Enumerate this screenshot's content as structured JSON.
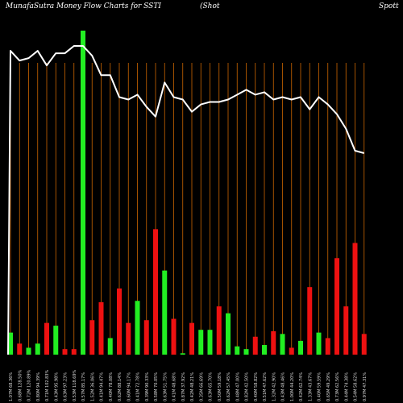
{
  "header": {
    "brand": "MunafaSutra  Money Flow  Charts for SSTI",
    "company": "(Shot",
    "company_end": "Spott"
  },
  "chart_data": {
    "type": "bar",
    "title": "MunafaSutra  Money Flow  Charts for SSTI",
    "series": [
      {
        "name": "money_flow",
        "values": [
          16,
          8,
          5,
          8,
          23,
          21,
          4,
          4,
          235,
          25,
          38,
          12,
          48,
          23,
          39,
          25,
          91,
          61,
          26,
          1,
          23,
          18,
          18,
          35,
          30,
          6,
          4,
          13,
          7,
          17,
          15,
          5,
          10,
          49,
          16,
          12,
          70,
          35,
          81,
          15
        ],
        "colors": [
          "green",
          "red",
          "green",
          "green",
          "red",
          "green",
          "red",
          "red",
          "green",
          "red",
          "red",
          "green",
          "red",
          "red",
          "green",
          "red",
          "red",
          "green",
          "red",
          "green",
          "red",
          "green",
          "green",
          "red",
          "green",
          "green",
          "green",
          "red",
          "green",
          "red",
          "green",
          "red",
          "green",
          "red",
          "green",
          "red",
          "red",
          "red",
          "red",
          "red"
        ]
      },
      {
        "name": "price_line",
        "values": [
          212,
          208,
          209,
          212,
          206,
          211,
          211,
          214,
          214,
          210,
          202,
          202,
          193,
          192,
          194,
          189,
          185,
          199,
          193,
          192,
          187,
          190,
          191,
          191,
          192,
          194,
          196,
          194,
          195,
          192,
          193,
          192,
          193,
          188,
          193,
          190,
          186,
          180,
          171,
          170
        ]
      }
    ],
    "line_color": "#ffffff",
    "bar_colors": {
      "green": "#22ee22",
      "red": "#ee1111"
    },
    "gridline_color": "#cc6600",
    "x_tick_labels": [
      "1.07M 68.36%",
      "0.68M 128.50%",
      "0.72M 120.89%",
      "0.80M 94.39%",
      "0.71M 102.83%",
      "0.43M 95.98%",
      "0.63M 97.23%",
      "0.53M 118.69%",
      "0.57M 85.17%",
      "1.52M 36.06%",
      "0.41M 94.47%",
      "0.40M 78.08%",
      "0.62M 88.14%",
      "0.60M 94.17%",
      "0.41M 72.78%",
      "0.39M 90.33%",
      "0.58M 70.05%",
      "0.63M 51.75%",
      "0.41M 48.68%",
      "0.87M 37.92%",
      "0.42M 48.21%",
      "0.35M 66.69%",
      "0.63M 65.70%",
      "0.50M 59.18%",
      "0.62M 57.45%",
      "0.48M 47.00%",
      "0.82M 42.50%",
      "0.40M 58.82%",
      "0.51M 47.62%",
      "1.32M 42.90%",
      "0.43M 48.46%",
      "1.00M 44.20%",
      "0.42M 62.74%",
      "1.33M 43.67%",
      "0.40M 59.59%",
      "0.65M 49.29%",
      "0.73M 62.56%",
      "0.44M 74.38%",
      "0.54M 58.62%",
      "0.97M 47.31%"
    ],
    "grid": true
  }
}
